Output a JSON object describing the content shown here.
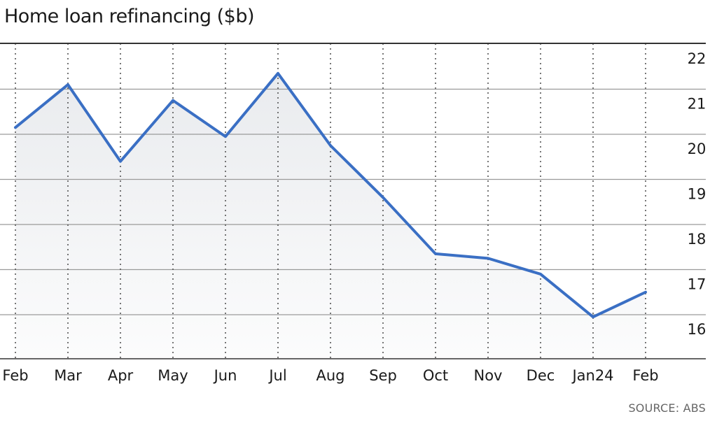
{
  "title": "Home loan refinancing ($b)",
  "source": "SOURCE: ABS",
  "colors": {
    "line": "#3a6fc4",
    "area": "#e9ebee",
    "grid": "#9a9a9a",
    "frame": "#333333",
    "text": "#1a1a1a"
  },
  "chart_data": {
    "type": "line",
    "categories": [
      "Feb",
      "Mar",
      "Apr",
      "May",
      "Jun",
      "Jul",
      "Aug",
      "Sep",
      "Oct",
      "Nov",
      "Dec",
      "Jan24",
      "Feb"
    ],
    "series": [
      {
        "values": [
          20.15,
          21.1,
          19.4,
          20.75,
          19.95,
          21.35,
          19.75,
          18.6,
          17.35,
          17.25,
          16.9,
          15.95,
          16.5
        ]
      }
    ],
    "yticks": [
      16,
      17,
      18,
      19,
      20,
      21,
      22
    ],
    "ylim": [
      15,
      22
    ],
    "y_axis_position": "right",
    "grid": true,
    "area_fill": true
  }
}
